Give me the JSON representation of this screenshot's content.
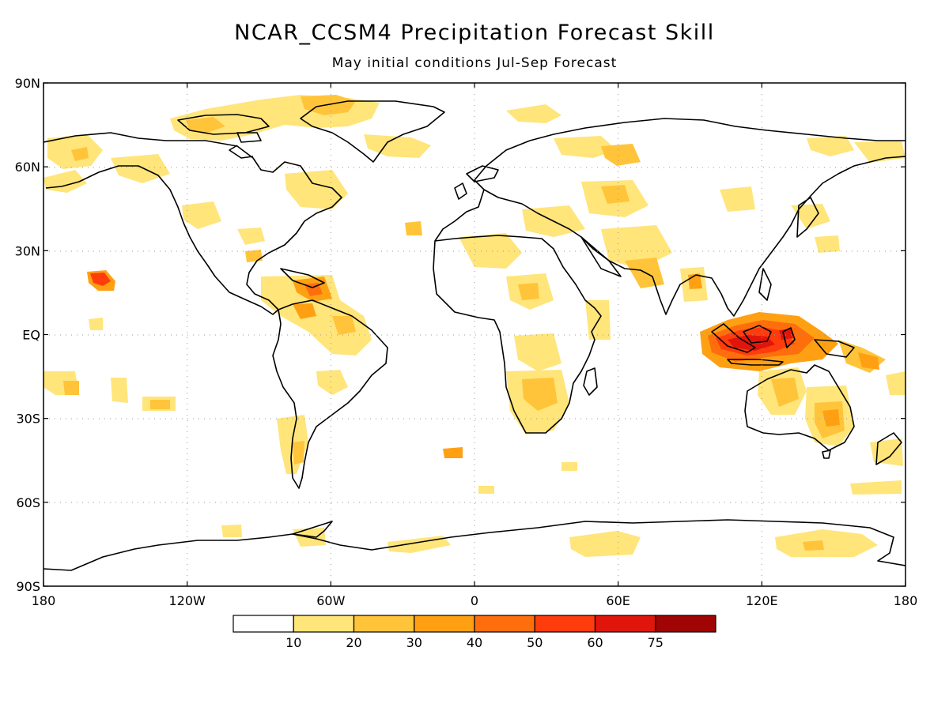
{
  "title": "NCAR_CCSM4 Precipitation Forecast Skill",
  "subtitle": "May initial conditions   Jul-Sep Forecast",
  "map": {
    "lat_labels": [
      "90N",
      "60N",
      "30N",
      "EQ",
      "30S",
      "60S",
      "90S"
    ],
    "lon_labels": [
      "180",
      "120W",
      "60W",
      "0",
      "60E",
      "120E",
      "180"
    ],
    "grid": "dotted",
    "projection": "equirectangular"
  },
  "legend": {
    "tick_labels": [
      "10",
      "20",
      "30",
      "40",
      "50",
      "60",
      "75"
    ],
    "colors": [
      "#ffffff",
      "#ffe57a",
      "#ffc43a",
      "#ffa013",
      "#ff6e0c",
      "#ff3c0c",
      "#e0160c",
      "#a00404"
    ]
  },
  "skill_regions": [
    {
      "region": "Maritime Continent",
      "level": "60-75"
    },
    {
      "region": "Central Pacific near 20N",
      "level": "50-60"
    },
    {
      "region": "Caribbean / northern South America",
      "level": "30-50"
    },
    {
      "region": "Australia",
      "level": "20-40"
    },
    {
      "region": "Southern Africa",
      "level": "20-30"
    },
    {
      "region": "Arctic Canada / Greenland",
      "level": "10-30"
    },
    {
      "region": "Antarctica",
      "level": "10-20"
    }
  ]
}
